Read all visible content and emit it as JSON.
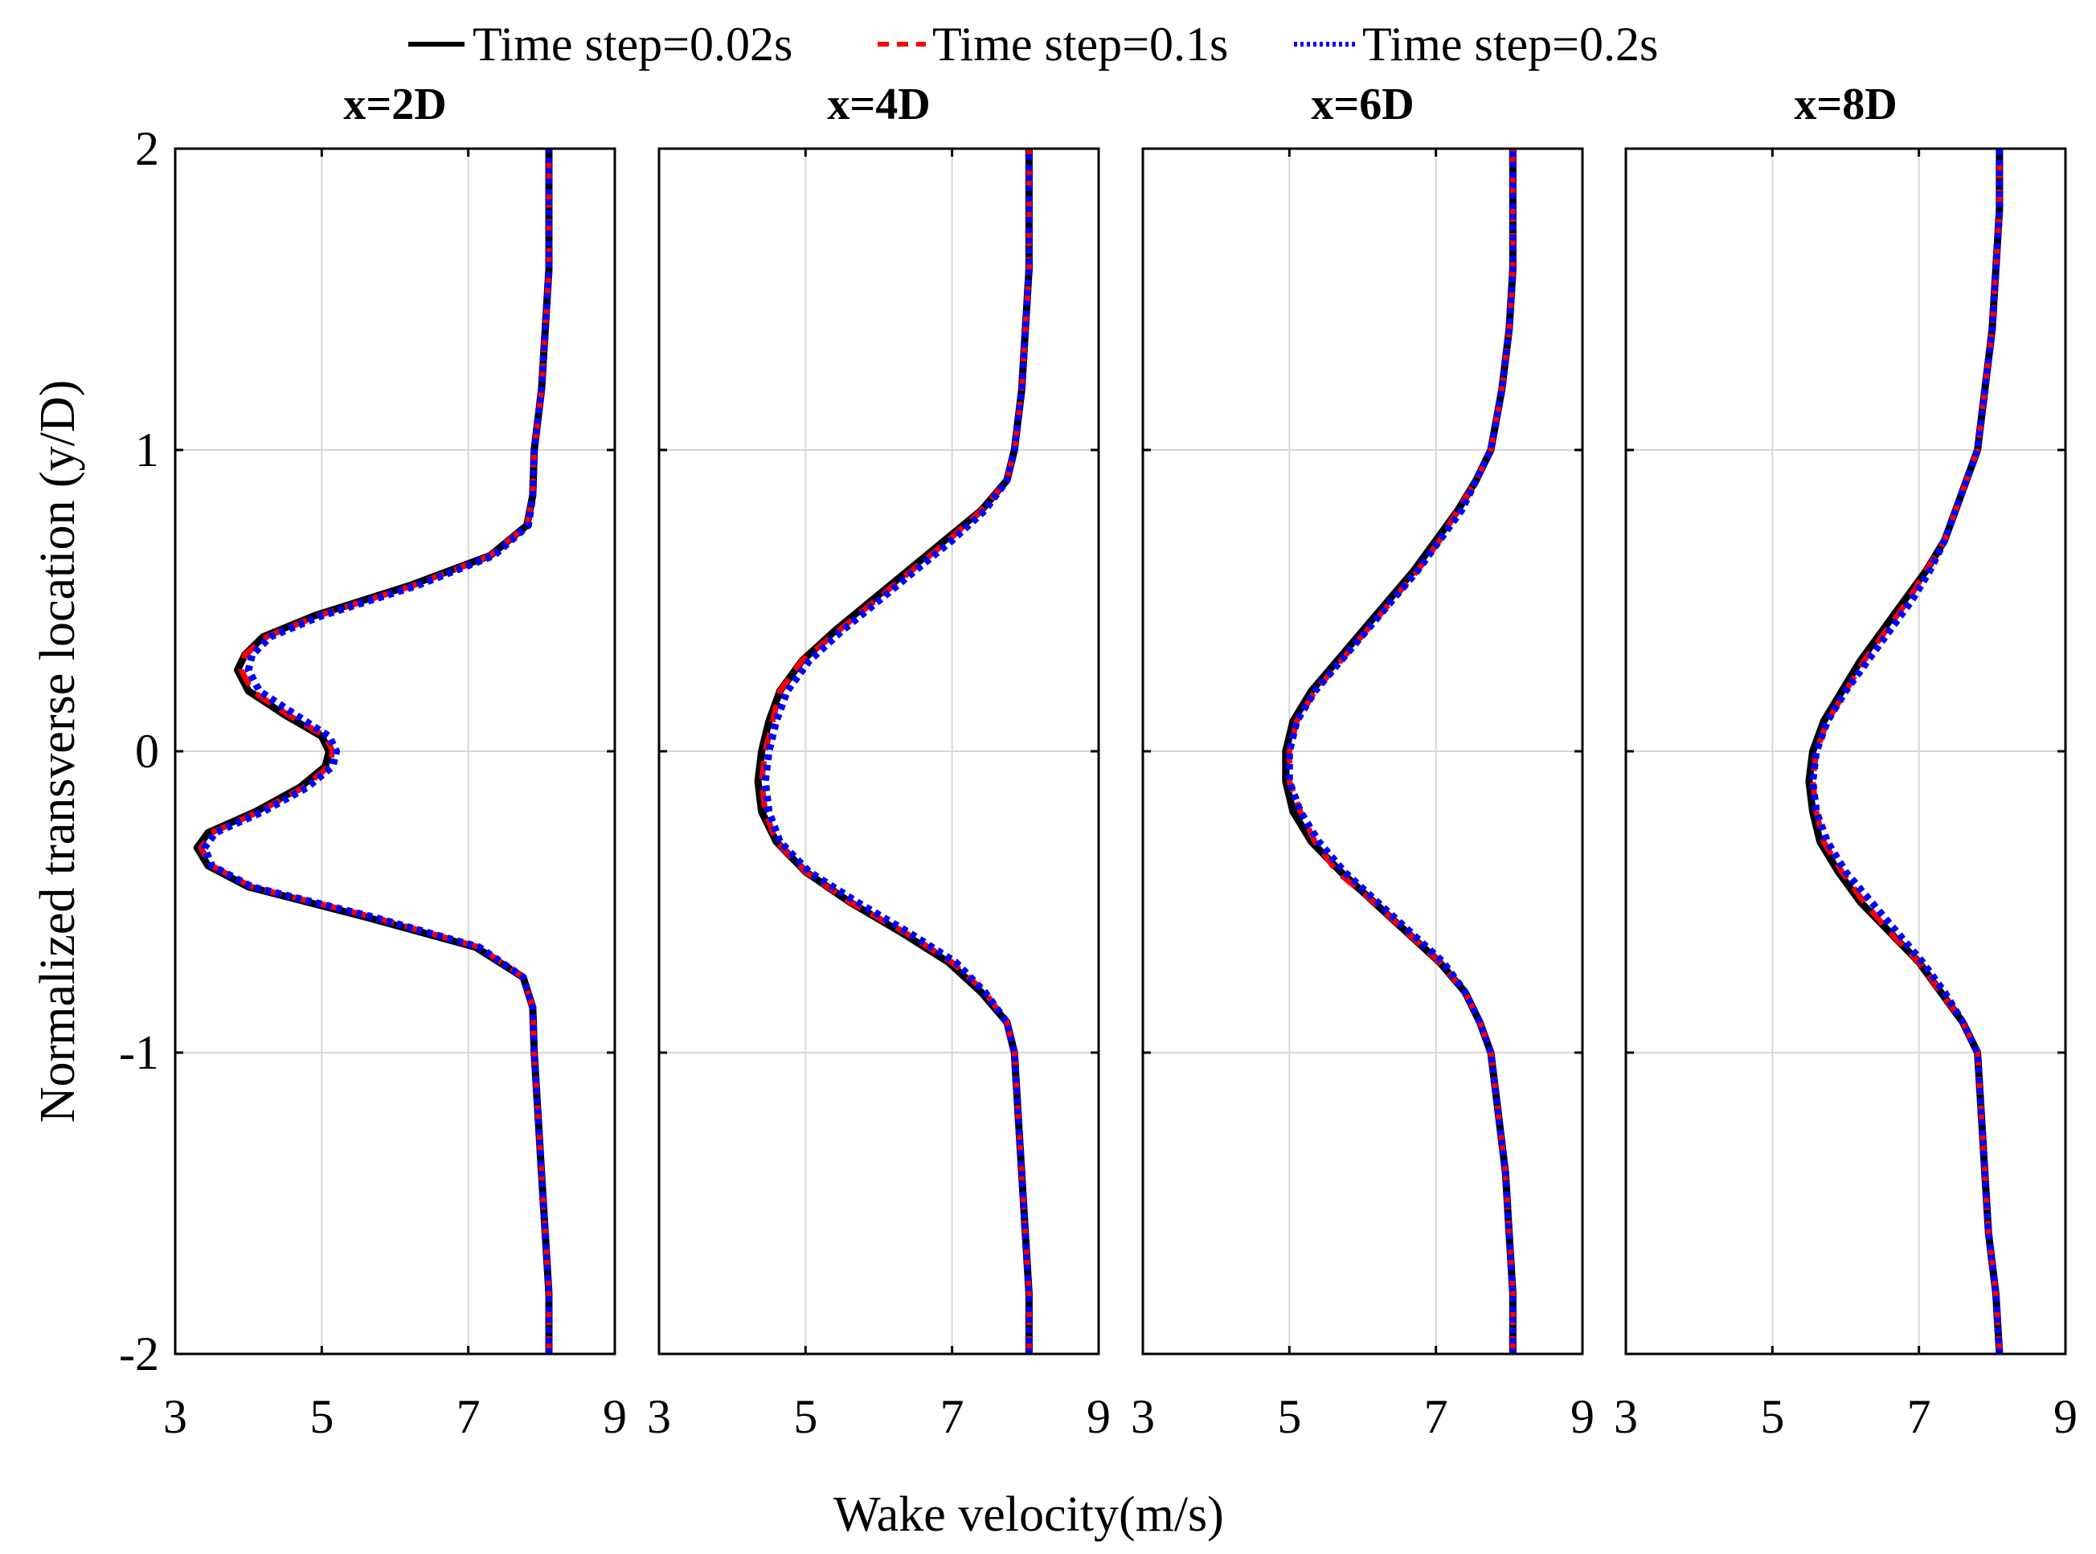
{
  "chart_data": {
    "type": "line",
    "xlabel": "Wake velocity(m/s)",
    "ylabel": "Normalized transverse location (y/D)",
    "xlim": [
      3,
      9
    ],
    "ylim": [
      -2,
      2
    ],
    "x_ticks": [
      "3",
      "5",
      "7",
      "9"
    ],
    "y_ticks": [
      "2",
      "1",
      "0",
      "-1",
      "-2"
    ],
    "grid": true,
    "legend": {
      "placement": "top",
      "entries": [
        "Time step=0.02s",
        "Time step=0.1s",
        "Time step=0.2s"
      ]
    },
    "series_styles": [
      {
        "name": "Time step=0.02s",
        "color": "#000000",
        "dash": "solid"
      },
      {
        "name": "Time step=0.1s",
        "color": "#ff0000",
        "dash": "dashed"
      },
      {
        "name": "Time step=0.2s",
        "color": "#0000ff",
        "dash": "dotted"
      }
    ],
    "panels": [
      {
        "title": "x=2D",
        "y": [
          -2,
          -1.8,
          -1.6,
          -1.4,
          -1.2,
          -1.0,
          -0.85,
          -0.75,
          -0.65,
          -0.55,
          -0.45,
          -0.38,
          -0.32,
          -0.27,
          -0.2,
          -0.12,
          -0.05,
          0.0,
          0.05,
          0.12,
          0.2,
          0.27,
          0.32,
          0.38,
          0.45,
          0.55,
          0.65,
          0.75,
          0.85,
          1.0,
          1.2,
          1.4,
          1.6,
          1.8,
          2.0
        ],
        "series": [
          {
            "name": "Time step=0.02s",
            "values": [
              8.1,
              8.1,
              8.05,
              8.0,
              7.95,
              7.9,
              7.88,
              7.75,
              7.1,
              5.6,
              4.0,
              3.45,
              3.3,
              3.45,
              4.1,
              4.7,
              5.05,
              5.1,
              5.0,
              4.5,
              4.0,
              3.85,
              3.95,
              4.2,
              4.9,
              6.2,
              7.3,
              7.8,
              7.88,
              7.9,
              8.0,
              8.05,
              8.1,
              8.1,
              8.1
            ]
          },
          {
            "name": "Time step=0.1s",
            "values": [
              8.1,
              8.1,
              8.05,
              8.0,
              7.95,
              7.9,
              7.88,
              7.75,
              7.15,
              5.7,
              4.05,
              3.5,
              3.35,
              3.5,
              4.15,
              4.75,
              5.1,
              5.15,
              5.05,
              4.55,
              4.05,
              3.9,
              3.95,
              4.25,
              4.95,
              6.25,
              7.3,
              7.8,
              7.88,
              7.9,
              8.0,
              8.05,
              8.1,
              8.1,
              8.1
            ]
          },
          {
            "name": "Time step=0.2s",
            "values": [
              8.1,
              8.1,
              8.05,
              8.0,
              7.95,
              7.9,
              7.88,
              7.75,
              7.15,
              5.7,
              4.05,
              3.5,
              3.4,
              3.55,
              4.2,
              4.8,
              5.15,
              5.2,
              5.1,
              4.65,
              4.15,
              4.0,
              4.05,
              4.3,
              5.0,
              6.3,
              7.35,
              7.82,
              7.88,
              7.9,
              8.0,
              8.05,
              8.1,
              8.1,
              8.1
            ]
          }
        ]
      },
      {
        "title": "x=4D",
        "y": [
          -2,
          -1.8,
          -1.6,
          -1.4,
          -1.2,
          -1.0,
          -0.9,
          -0.8,
          -0.7,
          -0.6,
          -0.5,
          -0.4,
          -0.3,
          -0.2,
          -0.1,
          0.0,
          0.1,
          0.2,
          0.3,
          0.4,
          0.5,
          0.6,
          0.7,
          0.8,
          0.9,
          1.0,
          1.2,
          1.4,
          1.6,
          1.8,
          2.0
        ],
        "series": [
          {
            "name": "Time step=0.02s",
            "values": [
              8.05,
              8.05,
              8.0,
              7.95,
              7.9,
              7.85,
              7.75,
              7.4,
              6.95,
              6.3,
              5.6,
              5.0,
              4.6,
              4.4,
              4.35,
              4.4,
              4.5,
              4.65,
              4.95,
              5.4,
              5.9,
              6.4,
              6.9,
              7.4,
              7.75,
              7.85,
              7.95,
              8.0,
              8.05,
              8.05,
              8.05
            ]
          },
          {
            "name": "Time step=0.1s",
            "values": [
              8.05,
              8.05,
              8.0,
              7.95,
              7.9,
              7.85,
              7.75,
              7.45,
              7.0,
              6.35,
              5.6,
              5.0,
              4.6,
              4.45,
              4.4,
              4.45,
              4.55,
              4.65,
              4.95,
              5.45,
              5.95,
              6.45,
              6.95,
              7.4,
              7.75,
              7.85,
              7.95,
              8.0,
              8.05,
              8.05,
              8.05
            ]
          },
          {
            "name": "Time step=0.2s",
            "values": [
              8.05,
              8.05,
              8.0,
              7.95,
              7.9,
              7.85,
              7.75,
              7.45,
              7.05,
              6.4,
              5.7,
              5.05,
              4.65,
              4.5,
              4.45,
              4.5,
              4.6,
              4.75,
              5.05,
              5.5,
              6.0,
              6.5,
              7.0,
              7.45,
              7.75,
              7.85,
              7.95,
              8.0,
              8.05,
              8.05,
              8.05
            ]
          }
        ]
      },
      {
        "title": "x=6D",
        "y": [
          -2,
          -1.8,
          -1.6,
          -1.4,
          -1.2,
          -1.0,
          -0.9,
          -0.8,
          -0.7,
          -0.6,
          -0.5,
          -0.4,
          -0.3,
          -0.2,
          -0.1,
          0.0,
          0.1,
          0.2,
          0.3,
          0.4,
          0.5,
          0.6,
          0.7,
          0.8,
          0.9,
          1.0,
          1.2,
          1.4,
          1.6,
          1.8,
          2.0
        ],
        "series": [
          {
            "name": "Time step=0.02s",
            "values": [
              8.05,
              8.05,
              8.0,
              7.95,
              7.85,
              7.75,
              7.6,
              7.4,
              7.05,
              6.6,
              6.15,
              5.7,
              5.3,
              5.05,
              4.95,
              4.95,
              5.05,
              5.3,
              5.65,
              6.0,
              6.35,
              6.7,
              7.0,
              7.3,
              7.55,
              7.75,
              7.9,
              8.0,
              8.05,
              8.05,
              8.05
            ]
          },
          {
            "name": "Time step=0.1s",
            "values": [
              8.05,
              8.05,
              8.0,
              7.95,
              7.85,
              7.75,
              7.6,
              7.4,
              7.05,
              6.6,
              6.15,
              5.65,
              5.35,
              5.15,
              5.0,
              5.0,
              5.1,
              5.35,
              5.7,
              6.05,
              6.4,
              6.75,
              7.05,
              7.3,
              7.55,
              7.75,
              7.9,
              8.0,
              8.05,
              8.05,
              8.05
            ]
          },
          {
            "name": "Time step=0.2s",
            "values": [
              8.05,
              8.05,
              8.0,
              7.95,
              7.85,
              7.75,
              7.6,
              7.4,
              7.1,
              6.65,
              6.2,
              5.75,
              5.4,
              5.15,
              5.0,
              5.0,
              5.1,
              5.35,
              5.7,
              6.05,
              6.4,
              6.75,
              7.05,
              7.35,
              7.55,
              7.75,
              7.9,
              8.0,
              8.05,
              8.05,
              8.05
            ]
          }
        ]
      },
      {
        "title": "x=8D",
        "y": [
          -2,
          -1.8,
          -1.6,
          -1.4,
          -1.2,
          -1.0,
          -0.9,
          -0.8,
          -0.7,
          -0.6,
          -0.5,
          -0.4,
          -0.3,
          -0.2,
          -0.1,
          0.0,
          0.1,
          0.2,
          0.3,
          0.4,
          0.5,
          0.6,
          0.7,
          0.8,
          0.9,
          1.0,
          1.2,
          1.4,
          1.6,
          1.8,
          2.0
        ],
        "series": [
          {
            "name": "Time step=0.02s",
            "values": [
              8.1,
              8.05,
              7.95,
              7.9,
              7.85,
              7.8,
              7.6,
              7.3,
              7.0,
              6.6,
              6.2,
              5.9,
              5.65,
              5.55,
              5.5,
              5.55,
              5.7,
              5.95,
              6.2,
              6.5,
              6.8,
              7.1,
              7.35,
              7.5,
              7.65,
              7.8,
              7.9,
              8.0,
              8.05,
              8.1,
              8.1
            ]
          },
          {
            "name": "Time step=0.1s",
            "values": [
              8.1,
              8.05,
              7.95,
              7.9,
              7.85,
              7.8,
              7.6,
              7.3,
              7.0,
              6.6,
              6.25,
              5.95,
              5.7,
              5.6,
              5.55,
              5.6,
              5.75,
              6.0,
              6.25,
              6.55,
              6.85,
              7.1,
              7.35,
              7.5,
              7.65,
              7.8,
              7.9,
              8.0,
              8.05,
              8.1,
              8.1
            ]
          },
          {
            "name": "Time step=0.2s",
            "values": [
              8.1,
              8.05,
              7.95,
              7.9,
              7.85,
              7.8,
              7.6,
              7.35,
              7.05,
              6.7,
              6.35,
              6.0,
              5.75,
              5.6,
              5.55,
              5.6,
              5.75,
              6.0,
              6.3,
              6.6,
              6.9,
              7.15,
              7.35,
              7.5,
              7.65,
              7.8,
              7.9,
              8.0,
              8.05,
              8.1,
              8.1
            ]
          }
        ]
      }
    ]
  }
}
